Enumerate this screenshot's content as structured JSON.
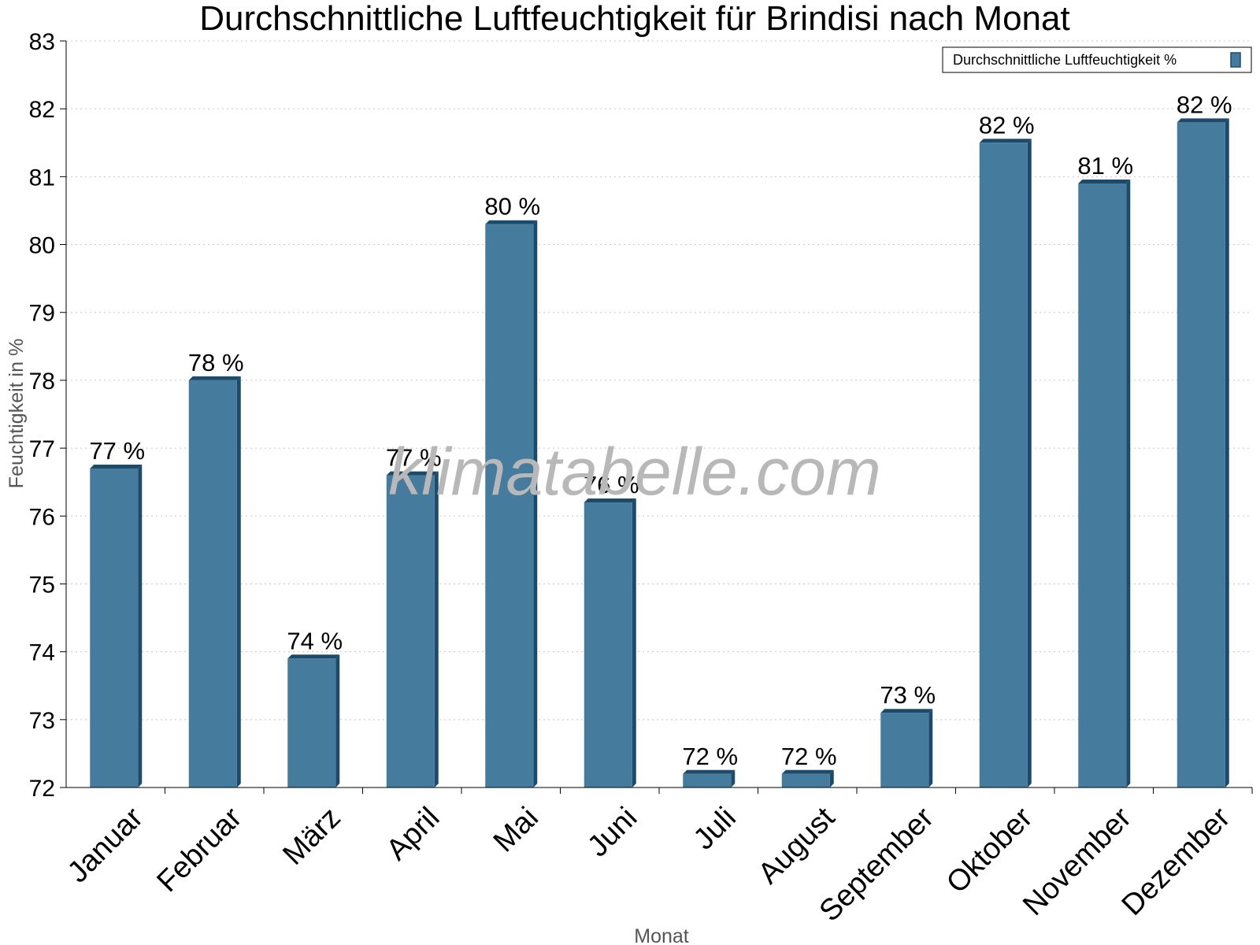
{
  "chart_data": {
    "type": "bar",
    "title": "Durchschnittliche Luftfeuchtigkeit für Brindisi nach Monat",
    "xlabel": "Monat",
    "ylabel": "Feuchtigkeit in %",
    "ylim": [
      72,
      83
    ],
    "yticks": [
      "72",
      "73",
      "74",
      "75",
      "76",
      "77",
      "78",
      "79",
      "80",
      "81",
      "82",
      "83"
    ],
    "grid": true,
    "legend_position": "top-right",
    "categories": [
      "Januar",
      "Februar",
      "März",
      "April",
      "Mai",
      "Juni",
      "Juli",
      "August",
      "September",
      "Oktober",
      "November",
      "Dezember"
    ],
    "series": [
      {
        "name": "Durchschnittliche Luftfeuchtigkeit %",
        "values": [
          76.7,
          78.0,
          73.9,
          76.6,
          80.3,
          76.2,
          72.2,
          72.2,
          73.1,
          81.5,
          80.9,
          81.8
        ],
        "labels": [
          "77 %",
          "78 %",
          "74 %",
          "77 %",
          "80 %",
          "76 %",
          "72 %",
          "72 %",
          "73 %",
          "82 %",
          "81 %",
          "82 %"
        ],
        "color": "#457b9d",
        "edge_color": "#1c4a6b"
      }
    ],
    "watermark": "klimatabelle.com"
  }
}
